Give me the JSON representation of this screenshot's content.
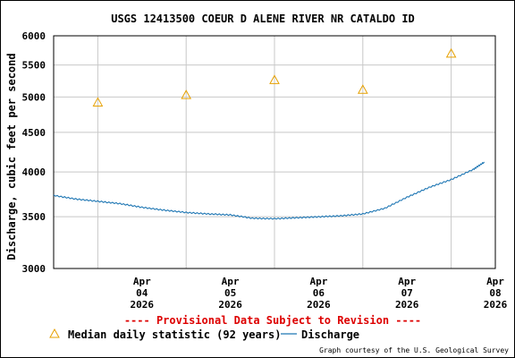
{
  "chart_data": {
    "type": "line",
    "title": "USGS 12413500 COEUR D ALENE RIVER NR CATALDO ID",
    "ylabel": "Discharge, cubic feet per second",
    "yscale": "log",
    "ylim": [
      3000,
      6000
    ],
    "yticks": [
      3000,
      3500,
      4000,
      4500,
      5000,
      5500,
      6000
    ],
    "ytick_labels": [
      "3000",
      "3500",
      "4000",
      "4500",
      "5000",
      "5500",
      "6000"
    ],
    "xlim": [
      "2026-04-03 12:00",
      "2026-04-08 12:00"
    ],
    "xticks": [
      {
        "month": "Apr",
        "day": "04",
        "year": "2026"
      },
      {
        "month": "Apr",
        "day": "05",
        "year": "2026"
      },
      {
        "month": "Apr",
        "day": "06",
        "year": "2026"
      },
      {
        "month": "Apr",
        "day": "07",
        "year": "2026"
      },
      {
        "month": "Apr",
        "day": "08",
        "year": "2026"
      }
    ],
    "grid": true,
    "series": [
      {
        "name": "Discharge",
        "color": "#1f77b4",
        "x": [
          "2026-04-03 12:00",
          "2026-04-03 18:00",
          "2026-04-04 00:00",
          "2026-04-04 06:00",
          "2026-04-04 12:00",
          "2026-04-04 18:00",
          "2026-04-05 00:00",
          "2026-04-05 06:00",
          "2026-04-05 12:00",
          "2026-04-05 18:00",
          "2026-04-06 00:00",
          "2026-04-06 06:00",
          "2026-04-06 12:00",
          "2026-04-06 18:00",
          "2026-04-07 00:00",
          "2026-04-07 06:00",
          "2026-04-07 12:00",
          "2026-04-07 18:00",
          "2026-04-08 00:00",
          "2026-04-08 06:00",
          "2026-04-08 09:00"
        ],
        "y": [
          3730,
          3690,
          3665,
          3640,
          3600,
          3570,
          3545,
          3530,
          3520,
          3485,
          3480,
          3490,
          3500,
          3510,
          3530,
          3590,
          3710,
          3820,
          3910,
          4030,
          4120
        ]
      },
      {
        "name": "Median daily statistic (92 years)",
        "color": "#e6a000",
        "marker": "triangle",
        "x": [
          "2026-04-04 00:00",
          "2026-04-05 00:00",
          "2026-04-06 00:00",
          "2026-04-07 00:00",
          "2026-04-08 00:00"
        ],
        "y": [
          4920,
          5030,
          5260,
          5110,
          5690
        ]
      }
    ],
    "legend": {
      "position": "bottom",
      "items": [
        "Median daily statistic (92 years)",
        "Discharge"
      ]
    }
  },
  "notes": {
    "provisional": "---- Provisional Data Subject to Revision ----",
    "provisional_color": "#dd0000",
    "credit": "Graph courtesy of the U.S. Geological Survey"
  }
}
